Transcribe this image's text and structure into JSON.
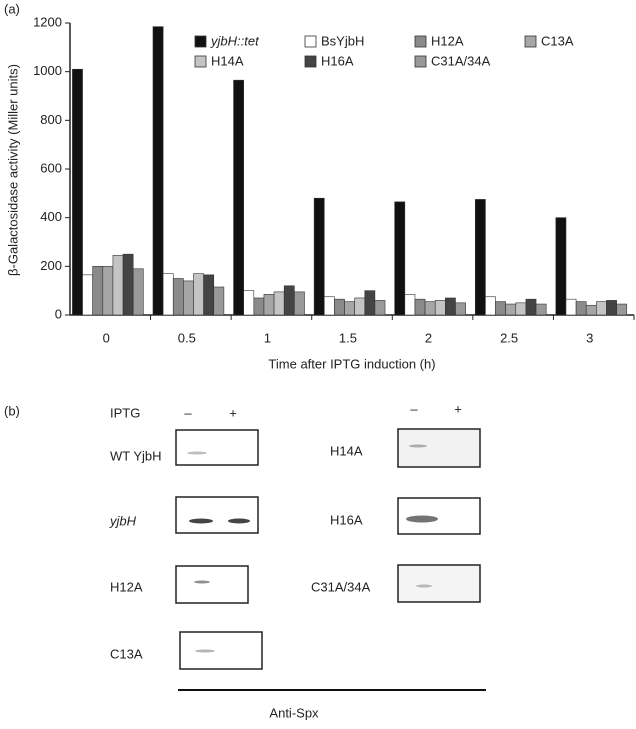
{
  "panel_a_label": "(a)",
  "chart_data": {
    "type": "bar",
    "y_label": "β-Galactosidase activity (Miller units)",
    "x_label": "Time after IPTG induction (h)",
    "categories": [
      "0",
      "0.5",
      "1",
      "1.5",
      "2",
      "2.5",
      "3"
    ],
    "ylim": [
      0,
      1200
    ],
    "yticks": [
      0,
      200,
      400,
      600,
      800,
      1000,
      1200
    ],
    "series": [
      {
        "name": "yjbH::tet",
        "color": "#111111",
        "values": [
          1010,
          1185,
          965,
          480,
          465,
          475,
          400
        ]
      },
      {
        "name": "BsYjbH",
        "color": "#ffffff",
        "values": [
          165,
          170,
          100,
          75,
          85,
          75,
          65
        ]
      },
      {
        "name": "H12A",
        "color": "#8a8a8a",
        "values": [
          200,
          150,
          70,
          65,
          65,
          55,
          55
        ]
      },
      {
        "name": "C13A",
        "color": "#a6a6a6",
        "values": [
          200,
          140,
          85,
          55,
          55,
          45,
          40
        ]
      },
      {
        "name": "H14A",
        "color": "#c4c4c4",
        "values": [
          245,
          170,
          95,
          70,
          60,
          50,
          55
        ]
      },
      {
        "name": "H16A",
        "color": "#444444",
        "values": [
          250,
          165,
          120,
          100,
          70,
          65,
          60
        ]
      },
      {
        "name": "C31A/34A",
        "color": "#999999",
        "values": [
          190,
          115,
          95,
          60,
          50,
          45,
          45
        ]
      }
    ]
  },
  "panel_b": {
    "label": "(b)",
    "iptg": "IPTG",
    "minus": "–",
    "plus": "+",
    "blots": [
      "WT YjbH",
      "yjbH",
      "H12A",
      "C13A",
      "H14A",
      "H16A",
      "C31A/34A"
    ],
    "antibody": "Anti-Spx"
  }
}
